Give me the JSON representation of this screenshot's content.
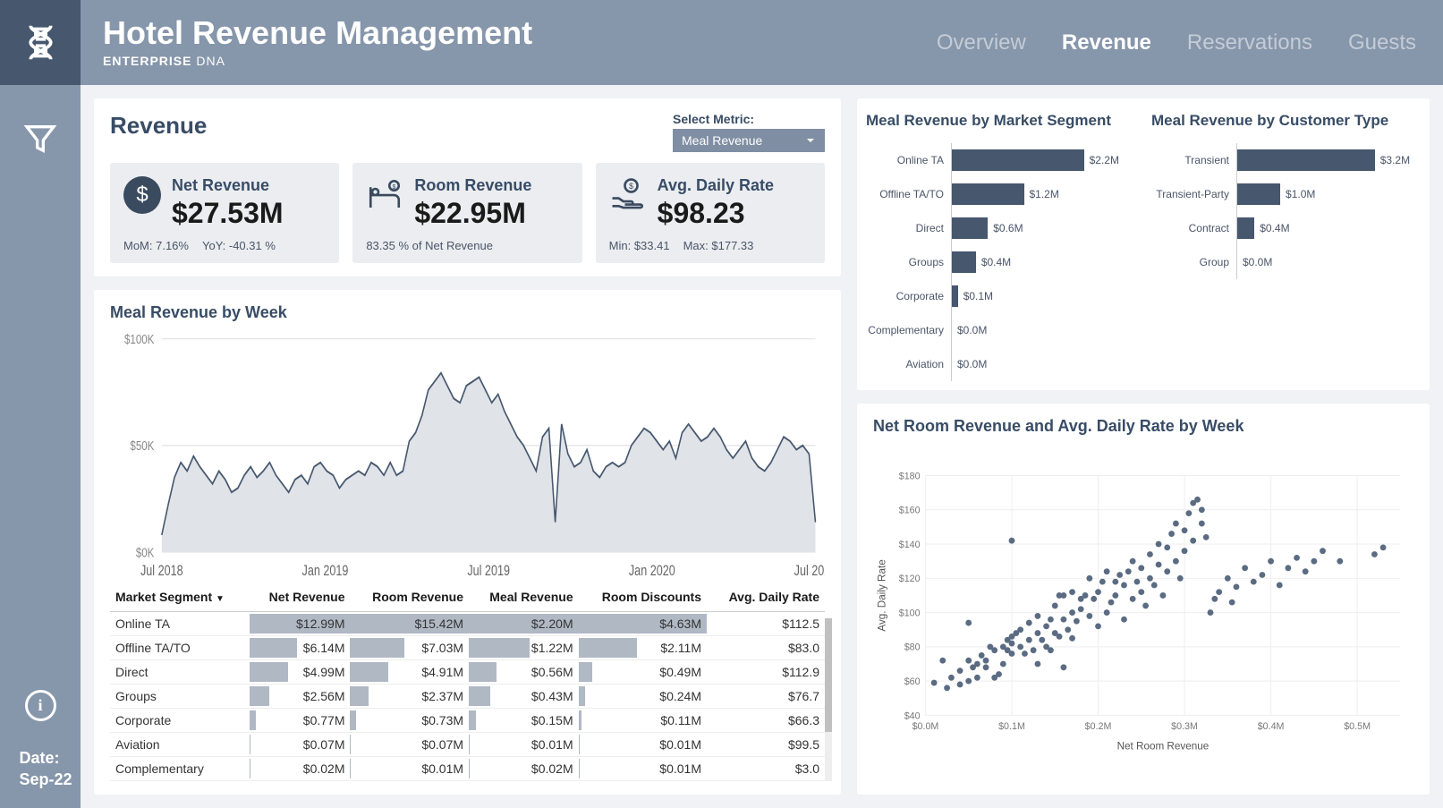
{
  "header": {
    "title": "Hotel Revenue Management",
    "subtitle_bold": "ENTERPRISE",
    "subtitle_rest": " DNA",
    "tabs": [
      {
        "label": "Overview",
        "active": false
      },
      {
        "label": "Revenue",
        "active": true
      },
      {
        "label": "Reservations",
        "active": false
      },
      {
        "label": "Guests",
        "active": false
      }
    ]
  },
  "sidebar": {
    "date_label": "Date:",
    "date_value": "Sep-22"
  },
  "revenue_panel": {
    "title": "Revenue",
    "metric_label": "Select Metric:",
    "metric_value": "Meal Revenue"
  },
  "kpis": [
    {
      "label": "Net Revenue",
      "value": "$27.53M",
      "footer1": "MoM: 7.16%",
      "footer2": "YoY: -40.31 %",
      "icon": "dollar"
    },
    {
      "label": "Room Revenue",
      "value": "$22.95M",
      "footer1": "83.35 % of Net Revenue",
      "footer2": "",
      "icon": "bed"
    },
    {
      "label": "Avg. Daily Rate",
      "value": "$98.23",
      "footer1": "Min: $33.41",
      "footer2": "Max:  $177.33",
      "icon": "hand"
    }
  ],
  "area_chart": {
    "title": "Meal Revenue by Week",
    "ylabel_max": "$100K",
    "ylabel_mid": "$50K",
    "ylabel_min": "$0K",
    "xlabels": [
      "Jul 2018",
      "Jan 2019",
      "Jul 2019",
      "Jan 2020",
      "Jul 2020"
    ],
    "ylim": [
      0,
      100
    ],
    "series": [
      8,
      22,
      35,
      42,
      38,
      45,
      40,
      36,
      32,
      38,
      34,
      28,
      30,
      36,
      40,
      35,
      38,
      42,
      36,
      32,
      28,
      34,
      36,
      32,
      40,
      42,
      38,
      36,
      30,
      34,
      36,
      38,
      36,
      42,
      40,
      36,
      42,
      36,
      38,
      52,
      56,
      64,
      76,
      80,
      84,
      78,
      72,
      70,
      78,
      80,
      82,
      76,
      70,
      74,
      66,
      60,
      54,
      50,
      44,
      38,
      54,
      58,
      14,
      60,
      46,
      40,
      42,
      48,
      38,
      35,
      40,
      42,
      40,
      42,
      50,
      54,
      58,
      56,
      52,
      48,
      52,
      44,
      56,
      60,
      56,
      52,
      54,
      58,
      54,
      48,
      44,
      48,
      52,
      44,
      40,
      38,
      42,
      48,
      54,
      52,
      48,
      50,
      46,
      14
    ],
    "stroke": "#46576e",
    "fill": "#e0e3e8"
  },
  "table": {
    "columns": [
      "Market Segment",
      "Net Revenue",
      "Room Revenue",
      "Meal Revenue",
      "Room Discounts",
      "Avg. Daily Rate"
    ],
    "max_vals": [
      12.99,
      15.42,
      2.2,
      4.63
    ],
    "rows": [
      {
        "seg": "Online TA",
        "net": "$12.99M",
        "net_n": 12.99,
        "room": "$15.42M",
        "room_n": 15.42,
        "meal": "$2.20M",
        "meal_n": 2.2,
        "disc": "$4.63M",
        "disc_n": 4.63,
        "adr": "$112.5"
      },
      {
        "seg": "Offline TA/TO",
        "net": "$6.14M",
        "net_n": 6.14,
        "room": "$7.03M",
        "room_n": 7.03,
        "meal": "$1.22M",
        "meal_n": 1.22,
        "disc": "$2.11M",
        "disc_n": 2.11,
        "adr": "$83.0"
      },
      {
        "seg": "Direct",
        "net": "$4.99M",
        "net_n": 4.99,
        "room": "$4.91M",
        "room_n": 4.91,
        "meal": "$0.56M",
        "meal_n": 0.56,
        "disc": "$0.49M",
        "disc_n": 0.49,
        "adr": "$112.9"
      },
      {
        "seg": "Groups",
        "net": "$2.56M",
        "net_n": 2.56,
        "room": "$2.37M",
        "room_n": 2.37,
        "meal": "$0.43M",
        "meal_n": 0.43,
        "disc": "$0.24M",
        "disc_n": 0.24,
        "adr": "$76.7"
      },
      {
        "seg": "Corporate",
        "net": "$0.77M",
        "net_n": 0.77,
        "room": "$0.73M",
        "room_n": 0.73,
        "meal": "$0.15M",
        "meal_n": 0.15,
        "disc": "$0.11M",
        "disc_n": 0.11,
        "adr": "$66.3"
      },
      {
        "seg": "Aviation",
        "net": "$0.07M",
        "net_n": 0.07,
        "room": "$0.07M",
        "room_n": 0.07,
        "meal": "$0.01M",
        "meal_n": 0.01,
        "disc": "$0.01M",
        "disc_n": 0.01,
        "adr": "$99.5"
      },
      {
        "seg": "Complementary",
        "net": "$0.02M",
        "net_n": 0.02,
        "room": "$0.01M",
        "room_n": 0.01,
        "meal": "$0.02M",
        "meal_n": 0.02,
        "disc": "$0.01M",
        "disc_n": 0.01,
        "adr": "$3.0"
      }
    ]
  },
  "segment_bars": {
    "title": "Meal Revenue by Market Segment",
    "max": 2.2,
    "rows": [
      {
        "label": "Online TA",
        "val": 2.2,
        "text": "$2.2M"
      },
      {
        "label": "Offline TA/TO",
        "val": 1.2,
        "text": "$1.2M"
      },
      {
        "label": "Direct",
        "val": 0.6,
        "text": "$0.6M"
      },
      {
        "label": "Groups",
        "val": 0.4,
        "text": "$0.4M"
      },
      {
        "label": "Corporate",
        "val": 0.1,
        "text": "$0.1M"
      },
      {
        "label": "Complementary",
        "val": 0.0,
        "text": "$0.0M"
      },
      {
        "label": "Aviation",
        "val": 0.0,
        "text": "$0.0M"
      }
    ]
  },
  "customer_bars": {
    "title": "Meal Revenue by Customer Type",
    "max": 3.2,
    "rows": [
      {
        "label": "Transient",
        "val": 3.2,
        "text": "$3.2M"
      },
      {
        "label": "Transient-Party",
        "val": 1.0,
        "text": "$1.0M"
      },
      {
        "label": "Contract",
        "val": 0.4,
        "text": "$0.4M"
      },
      {
        "label": "Group",
        "val": 0.0,
        "text": "$0.0M"
      }
    ]
  },
  "scatter": {
    "title": "Net Room Revenue and Avg. Daily Rate by Week",
    "xlabel": "Net Room Revenue",
    "ylabel": "Avg. Daily Rate",
    "xlim": [
      0,
      0.55
    ],
    "ylim": [
      40,
      180
    ],
    "xticks": [
      "$0.0M",
      "$0.1M",
      "$0.2M",
      "$0.3M",
      "$0.4M",
      "$0.5M"
    ],
    "yticks": [
      "$40",
      "$60",
      "$80",
      "$100",
      "$120",
      "$140",
      "$160",
      "$180"
    ],
    "point_color": "#5a6b82",
    "points": [
      [
        0.01,
        59
      ],
      [
        0.02,
        72
      ],
      [
        0.03,
        62
      ],
      [
        0.025,
        56
      ],
      [
        0.04,
        58
      ],
      [
        0.04,
        66
      ],
      [
        0.05,
        60
      ],
      [
        0.05,
        72
      ],
      [
        0.055,
        68
      ],
      [
        0.05,
        94
      ],
      [
        0.06,
        62
      ],
      [
        0.06,
        70
      ],
      [
        0.065,
        75
      ],
      [
        0.07,
        72
      ],
      [
        0.07,
        68
      ],
      [
        0.075,
        80
      ],
      [
        0.08,
        62
      ],
      [
        0.08,
        78
      ],
      [
        0.085,
        64
      ],
      [
        0.09,
        70
      ],
      [
        0.09,
        80
      ],
      [
        0.095,
        84
      ],
      [
        0.095,
        78
      ],
      [
        0.1,
        76
      ],
      [
        0.1,
        82
      ],
      [
        0.1,
        86
      ],
      [
        0.105,
        88
      ],
      [
        0.11,
        80
      ],
      [
        0.11,
        90
      ],
      [
        0.115,
        76
      ],
      [
        0.12,
        84
      ],
      [
        0.12,
        94
      ],
      [
        0.125,
        78
      ],
      [
        0.13,
        88
      ],
      [
        0.13,
        98
      ],
      [
        0.1,
        142
      ],
      [
        0.135,
        84
      ],
      [
        0.14,
        92
      ],
      [
        0.14,
        80
      ],
      [
        0.145,
        96
      ],
      [
        0.15,
        88
      ],
      [
        0.15,
        104
      ],
      [
        0.155,
        86
      ],
      [
        0.16,
        96
      ],
      [
        0.16,
        110
      ],
      [
        0.165,
        90
      ],
      [
        0.17,
        100
      ],
      [
        0.17,
        112
      ],
      [
        0.175,
        95
      ],
      [
        0.18,
        108
      ],
      [
        0.18,
        102
      ],
      [
        0.185,
        110
      ],
      [
        0.19,
        98
      ],
      [
        0.19,
        120
      ],
      [
        0.195,
        108
      ],
      [
        0.2,
        92
      ],
      [
        0.2,
        112
      ],
      [
        0.205,
        118
      ],
      [
        0.21,
        100
      ],
      [
        0.21,
        124
      ],
      [
        0.215,
        106
      ],
      [
        0.22,
        118
      ],
      [
        0.22,
        110
      ],
      [
        0.225,
        122
      ],
      [
        0.23,
        96
      ],
      [
        0.23,
        116
      ],
      [
        0.235,
        124
      ],
      [
        0.24,
        108
      ],
      [
        0.24,
        130
      ],
      [
        0.245,
        118
      ],
      [
        0.25,
        112
      ],
      [
        0.25,
        126
      ],
      [
        0.255,
        104
      ],
      [
        0.26,
        120
      ],
      [
        0.26,
        134
      ],
      [
        0.265,
        116
      ],
      [
        0.27,
        128
      ],
      [
        0.27,
        140
      ],
      [
        0.275,
        110
      ],
      [
        0.28,
        124
      ],
      [
        0.28,
        138
      ],
      [
        0.285,
        146
      ],
      [
        0.29,
        130
      ],
      [
        0.29,
        152
      ],
      [
        0.295,
        120
      ],
      [
        0.3,
        136
      ],
      [
        0.3,
        148
      ],
      [
        0.305,
        158
      ],
      [
        0.31,
        164
      ],
      [
        0.31,
        142
      ],
      [
        0.315,
        166
      ],
      [
        0.32,
        152
      ],
      [
        0.32,
        160
      ],
      [
        0.325,
        144
      ],
      [
        0.33,
        100
      ],
      [
        0.335,
        108
      ],
      [
        0.34,
        112
      ],
      [
        0.35,
        120
      ],
      [
        0.355,
        106
      ],
      [
        0.36,
        115
      ],
      [
        0.37,
        126
      ],
      [
        0.38,
        118
      ],
      [
        0.39,
        122
      ],
      [
        0.4,
        130
      ],
      [
        0.41,
        116
      ],
      [
        0.42,
        126
      ],
      [
        0.43,
        132
      ],
      [
        0.44,
        124
      ],
      [
        0.45,
        130
      ],
      [
        0.46,
        136
      ],
      [
        0.48,
        130
      ],
      [
        0.52,
        134
      ],
      [
        0.53,
        138
      ],
      [
        0.13,
        70
      ],
      [
        0.145,
        78
      ],
      [
        0.16,
        68
      ],
      [
        0.17,
        85
      ],
      [
        0.155,
        110
      ]
    ]
  }
}
